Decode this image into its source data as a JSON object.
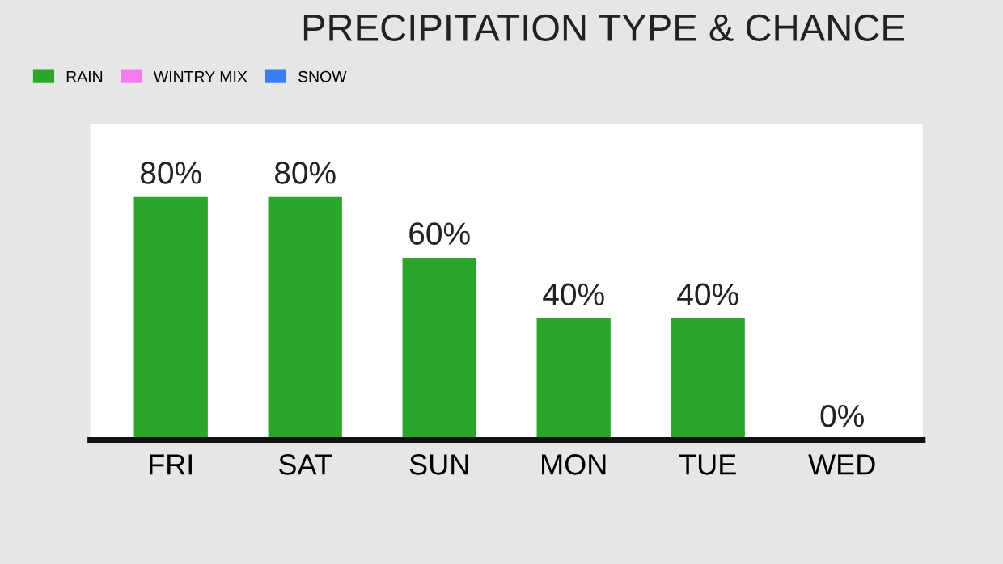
{
  "chart_data": {
    "type": "bar",
    "title": "PRECIPITATION TYPE & CHANCE",
    "categories": [
      "FRI",
      "SAT",
      "SUN",
      "MON",
      "TUE",
      "WED"
    ],
    "series": [
      {
        "name": "RAIN",
        "color": "#2ba52a",
        "values": [
          80,
          80,
          60,
          40,
          40,
          0
        ],
        "value_labels": [
          "80%",
          "80%",
          "60%",
          "40%",
          "40%",
          "0%"
        ]
      },
      {
        "name": "WINTRY MIX",
        "color": "#f57cf0",
        "values": [
          null,
          null,
          null,
          null,
          null,
          null
        ]
      },
      {
        "name": "SNOW",
        "color": "#3b7ef2",
        "values": [
          null,
          null,
          null,
          null,
          null,
          null
        ]
      }
    ],
    "legend": "top left",
    "grid": false
  }
}
